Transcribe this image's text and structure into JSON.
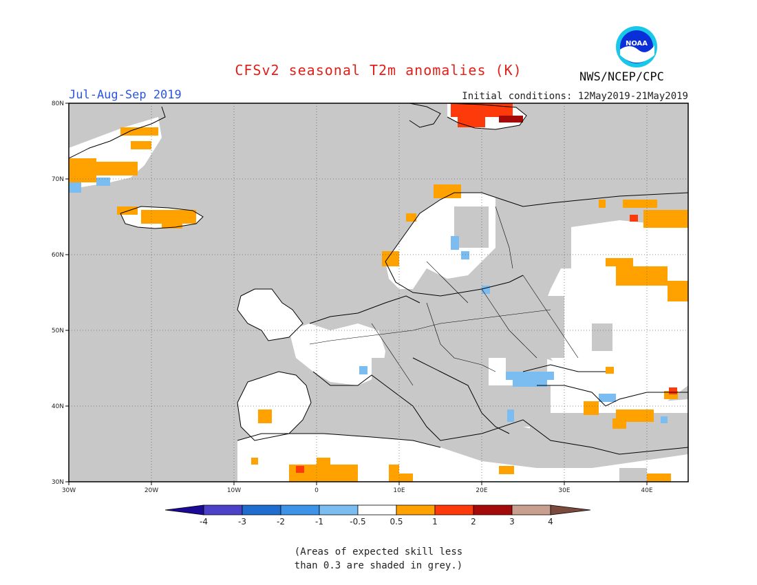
{
  "header": {
    "title": "CFSv2 seasonal T2m anomalies (K)",
    "period": "Jul-Aug-Sep 2019",
    "initial_conditions": "Initial conditions: 12May2019-21May2019",
    "agency": "NWS/NCEP/CPC",
    "logo_icon": "noaa-logo-icon"
  },
  "map": {
    "lon_range": [
      -30,
      45
    ],
    "lat_range": [
      30,
      80
    ],
    "lon_ticks": [
      "30W",
      "20W",
      "10W",
      "0",
      "10E",
      "20E",
      "30E",
      "40E"
    ],
    "lat_ticks": [
      "30N",
      "40N",
      "50N",
      "60N",
      "70N",
      "80N"
    ],
    "grid": "dotted",
    "colors": {
      "skill_grey": "#c8c8c8",
      "ocean_background": "#c8c8c8",
      "land_white": "#ffffff",
      "coastline": "#000000"
    }
  },
  "colorbar": {
    "labels": [
      "-4",
      "-3",
      "-2",
      "-1",
      "-0.5",
      "0.5",
      "1",
      "2",
      "3",
      "4"
    ],
    "colors": [
      "#1a0a96",
      "#4b42c8",
      "#1f6ecf",
      "#3d93e8",
      "#7bbcf1",
      "#ffffff",
      "#ffa200",
      "#ff3a0a",
      "#a40a0a",
      "#c9a090",
      "#7a4a3c"
    ]
  },
  "note": {
    "line1": "(Areas of expected skill less",
    "line2": "than 0.3 are shaded in grey.)"
  }
}
